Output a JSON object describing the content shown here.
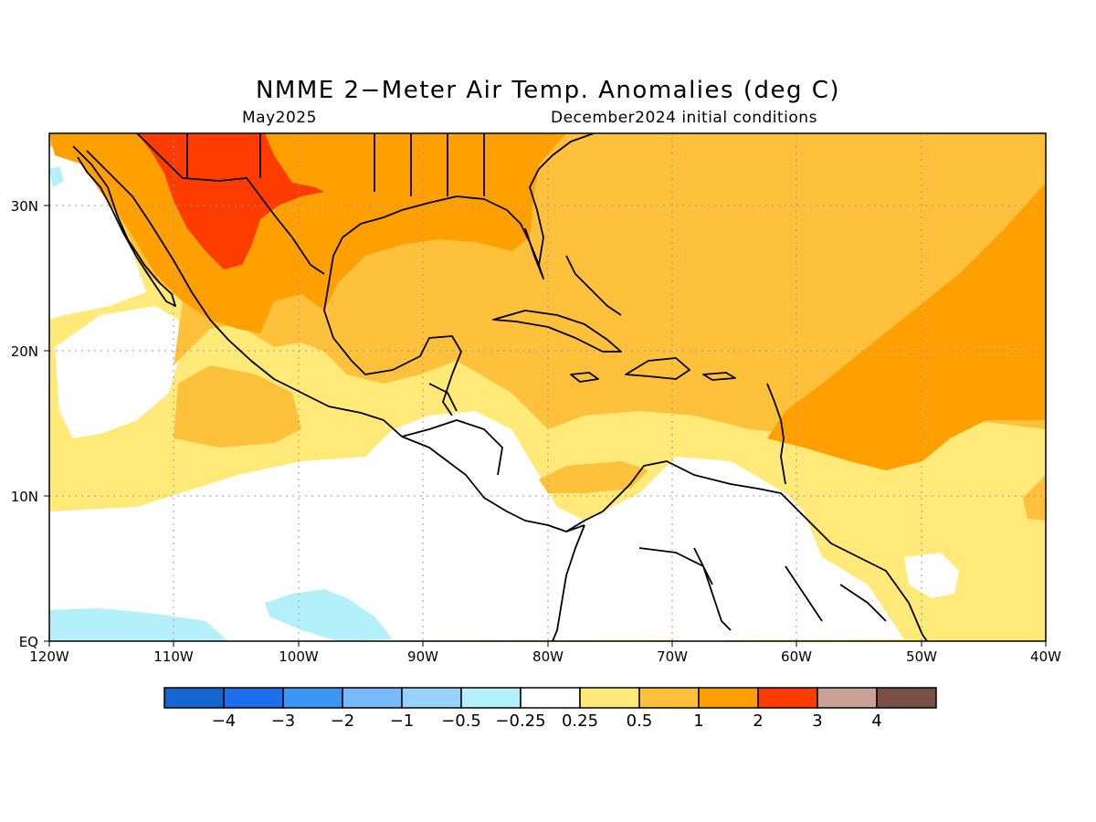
{
  "header": {
    "title": "NMME 2−Meter Air Temp. Anomalies (deg C)",
    "valid_month": "May2025",
    "init_conditions": "December2024 initial conditions"
  },
  "map": {
    "lon_range": [
      -120,
      -40
    ],
    "lat_range": [
      0,
      35
    ],
    "lon_ticks": [
      {
        "value": -120,
        "label": "120W"
      },
      {
        "value": -110,
        "label": "110W"
      },
      {
        "value": -100,
        "label": "100W"
      },
      {
        "value": -90,
        "label": "90W"
      },
      {
        "value": -80,
        "label": "80W"
      },
      {
        "value": -70,
        "label": "70W"
      },
      {
        "value": -60,
        "label": "60W"
      },
      {
        "value": -50,
        "label": "50W"
      },
      {
        "value": -40,
        "label": "40W"
      }
    ],
    "lat_ticks": [
      {
        "value": 0,
        "label": "EQ"
      },
      {
        "value": 10,
        "label": "10N"
      },
      {
        "value": 20,
        "label": "20N"
      },
      {
        "value": 30,
        "label": "30N"
      }
    ],
    "gridlines": true
  },
  "colorbar": {
    "colors": [
      "#1464d2",
      "#1e6eeb",
      "#3c96f5",
      "#78b9fa",
      "#96d2fa",
      "#b4f0fa",
      "#ffffff",
      "#ffe978",
      "#ffc03c",
      "#ffa000",
      "#ff3c00",
      "#c8a096",
      "#785046"
    ],
    "labels": [
      "−4",
      "−3",
      "−2",
      "−1",
      "−0.5",
      "−0.25",
      "0.25",
      "0.5",
      "1",
      "2",
      "3",
      "4"
    ]
  },
  "palette": {
    "white": "#ffffff",
    "light_blue": "#b4f0fa",
    "yellow": "#ffe978",
    "light_orange": "#ffc03c",
    "orange": "#ffa000",
    "red": "#ff3c00",
    "coast": "#000000",
    "grid": "#999999"
  }
}
